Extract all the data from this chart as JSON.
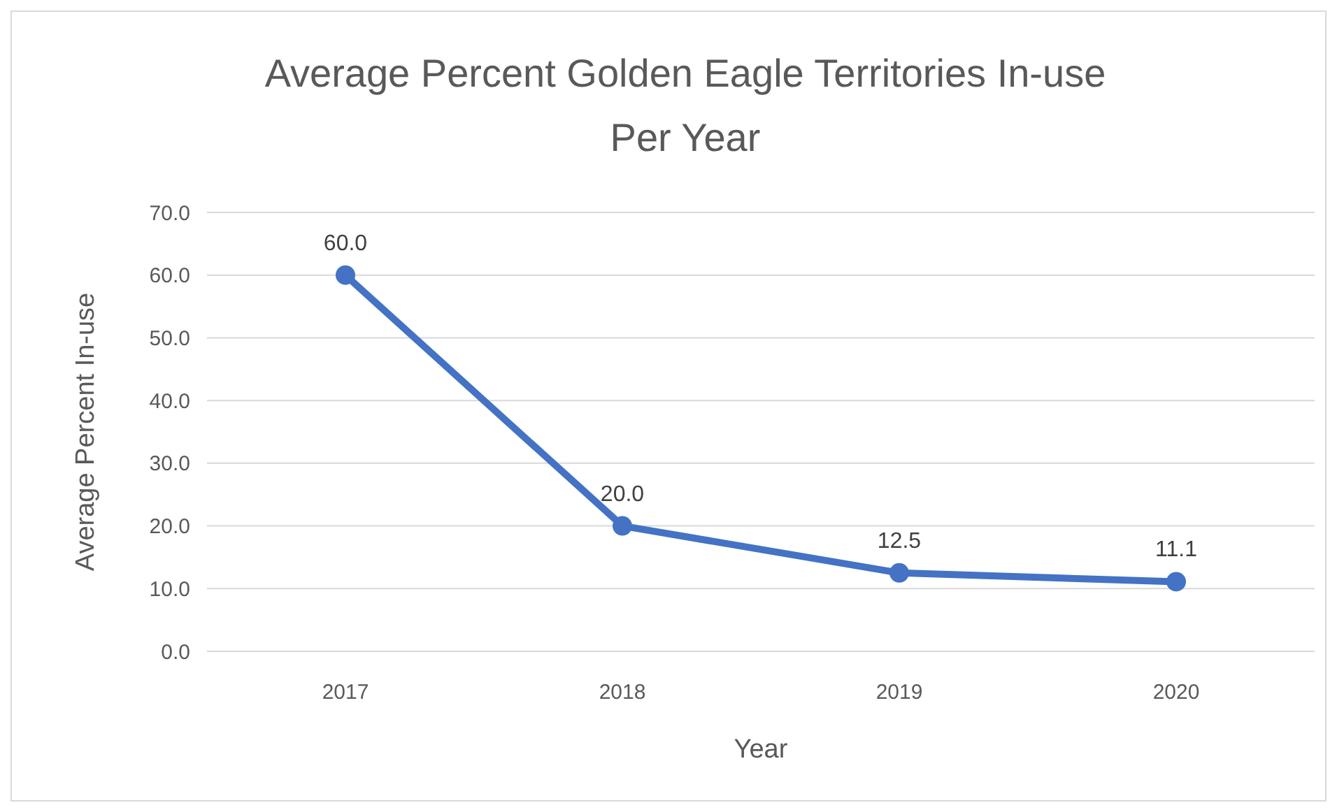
{
  "chart_data": {
    "type": "line",
    "title": "Average Percent Golden Eagle Territories In-use Per Year",
    "xlabel": "Year",
    "ylabel": "Average Percent In-use",
    "categories": [
      "2017",
      "2018",
      "2019",
      "2020"
    ],
    "series": [
      {
        "color": "#4472c4",
        "values": [
          60.0,
          20.0,
          12.5,
          11.1
        ],
        "value_labels": [
          "60.0",
          "20.0",
          "12.5",
          "11.1"
        ]
      }
    ],
    "ylim": [
      0,
      70
    ],
    "yticks": [
      {
        "value": 0,
        "label": "0.0"
      },
      {
        "value": 10,
        "label": "10.0"
      },
      {
        "value": 20,
        "label": "20.0"
      },
      {
        "value": 30,
        "label": "30.0"
      },
      {
        "value": 40,
        "label": "40.0"
      },
      {
        "value": 50,
        "label": "50.0"
      },
      {
        "value": 60,
        "label": "60.0"
      },
      {
        "value": 70,
        "label": "70.0"
      }
    ],
    "grid": "y",
    "marker": "circle",
    "line_style": "solid"
  }
}
